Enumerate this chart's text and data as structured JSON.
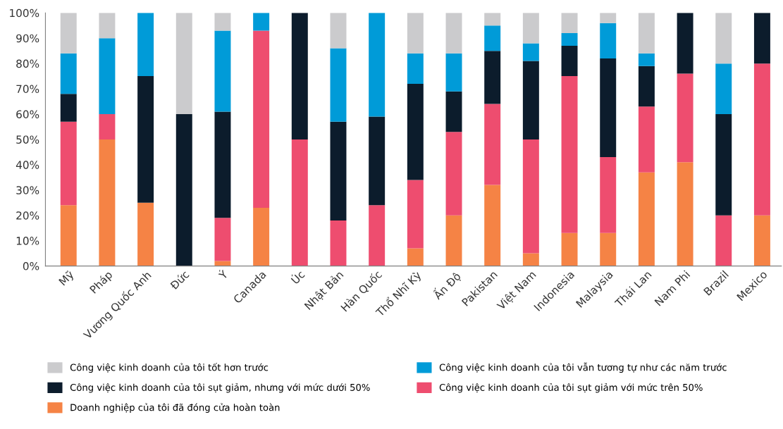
{
  "chart_data": {
    "type": "bar",
    "stacked": true,
    "legend": "bottom",
    "grid": false,
    "categories": [
      "Mỹ",
      "Pháp",
      "Vương Quốc Anh",
      "Đức",
      "Ý",
      "Canada",
      "Úc",
      "Nhật Bản",
      "Hàn Quốc",
      "Thổ Nhĩ Kỳ",
      "Ấn Độ",
      "Pakistan",
      "Việt Nam",
      "Indonesia",
      "Malaysia",
      "Thái Lan",
      "Nam Phi",
      "Brazil",
      "Mexico"
    ],
    "series": [
      {
        "name": "Doanh nghiệp của tôi đã đóng cửa hoàn toàn",
        "color": "#f58345",
        "values": [
          24,
          50,
          25,
          0,
          2,
          23,
          0,
          0,
          0,
          7,
          20,
          32,
          5,
          13,
          13,
          37,
          41,
          0,
          20
        ]
      },
      {
        "name": "Công việc kinh doanh của tôi sụt giảm với mức trên 50%",
        "color": "#ee4d6f",
        "values": [
          33,
          10,
          0,
          0,
          17,
          70,
          50,
          18,
          24,
          27,
          33,
          32,
          45,
          62,
          30,
          26,
          35,
          20,
          60
        ]
      },
      {
        "name": "Công việc kinh doanh của tôi sụt giảm, nhưng với mức dưới 50%",
        "color": "#0c1c2c",
        "values": [
          11,
          0,
          50,
          60,
          42,
          0,
          50,
          39,
          35,
          38,
          16,
          21,
          31,
          12,
          39,
          16,
          24,
          40,
          20
        ]
      },
      {
        "name": "Công việc kinh doanh của tôi vẫn tương tự như các năm trước",
        "color": "#009bd8",
        "values": [
          16,
          30,
          25,
          0,
          32,
          7,
          0,
          29,
          41,
          12,
          15,
          10,
          7,
          5,
          14,
          5,
          0,
          20,
          0
        ]
      },
      {
        "name": "Công việc kinh doanh của tôi tốt hơn trước",
        "color": "#cbcbcd",
        "values": [
          16,
          10,
          0,
          40,
          7,
          0,
          0,
          14,
          0,
          16,
          16,
          5,
          12,
          8,
          4,
          16,
          0,
          20,
          0
        ]
      }
    ],
    "ylim": [
      0,
      100
    ],
    "yticks": [
      {
        "value": 0,
        "label": "0%"
      },
      {
        "value": 10,
        "label": "10%"
      },
      {
        "value": 20,
        "label": "20%"
      },
      {
        "value": 30,
        "label": "30%"
      },
      {
        "value": 40,
        "label": "40%"
      },
      {
        "value": 50,
        "label": "50%"
      },
      {
        "value": 60,
        "label": "60%"
      },
      {
        "value": 70,
        "label": "70%"
      },
      {
        "value": 80,
        "label": "80%"
      },
      {
        "value": 90,
        "label": "90%"
      },
      {
        "value": 100,
        "label": "100%"
      }
    ]
  }
}
